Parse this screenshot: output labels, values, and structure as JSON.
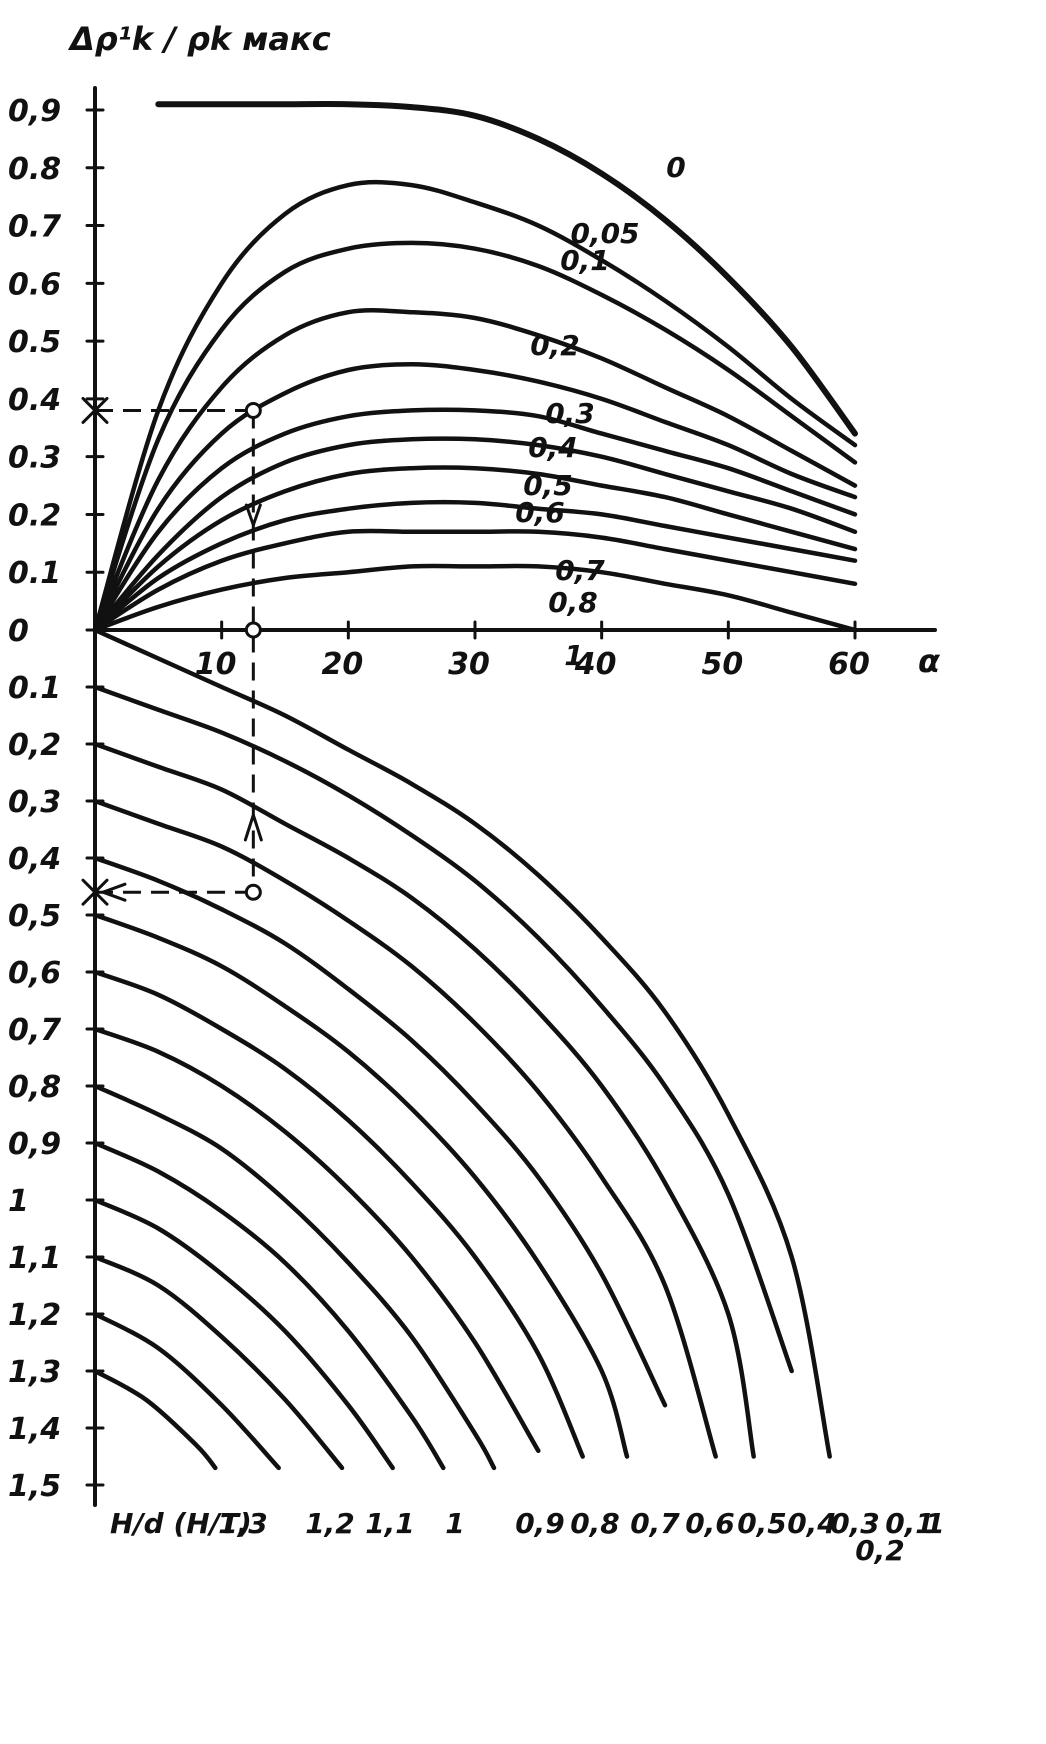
{
  "chart_data": [
    {
      "type": "line",
      "title": "",
      "ylabel": "Δρ¹k / ρk макс",
      "xlabel": "α",
      "xlim": [
        0,
        60
      ],
      "ylim": [
        0,
        0.9
      ],
      "x_ticks": [
        "10",
        "20",
        "30",
        "40",
        "50",
        "60"
      ],
      "y_ticks": [
        "0",
        "0.1",
        "0.2",
        "0.3",
        "0.4",
        "0.5",
        "0.6",
        "0.7",
        "0.8",
        "0,9"
      ],
      "series": [
        {
          "name": "0",
          "x": [
            5,
            10,
            15,
            20,
            25,
            30,
            35,
            40,
            45,
            50,
            55,
            60
          ],
          "y": [
            0.91,
            0.91,
            0.91,
            0.91,
            0.905,
            0.89,
            0.85,
            0.79,
            0.71,
            0.61,
            0.49,
            0.34
          ]
        },
        {
          "name": "0,05",
          "x": [
            0,
            5,
            10,
            15,
            20,
            25,
            30,
            35,
            40,
            45,
            50,
            55,
            60
          ],
          "y": [
            0,
            0.38,
            0.6,
            0.72,
            0.77,
            0.77,
            0.74,
            0.7,
            0.64,
            0.57,
            0.49,
            0.4,
            0.32
          ]
        },
        {
          "name": "0,1",
          "x": [
            0,
            5,
            10,
            15,
            20,
            25,
            30,
            35,
            40,
            45,
            50,
            55,
            60
          ],
          "y": [
            0,
            0.33,
            0.52,
            0.62,
            0.66,
            0.67,
            0.66,
            0.63,
            0.58,
            0.52,
            0.45,
            0.37,
            0.29
          ]
        },
        {
          "name": "0,2",
          "x": [
            0,
            5,
            10,
            15,
            20,
            25,
            30,
            35,
            40,
            45,
            50,
            55,
            60
          ],
          "y": [
            0,
            0.26,
            0.42,
            0.51,
            0.55,
            0.55,
            0.54,
            0.51,
            0.47,
            0.42,
            0.37,
            0.31,
            0.25
          ]
        },
        {
          "name": "0,3",
          "x": [
            0,
            5,
            10,
            15,
            20,
            25,
            30,
            35,
            40,
            45,
            50,
            55,
            60
          ],
          "y": [
            0,
            0.21,
            0.34,
            0.41,
            0.45,
            0.46,
            0.45,
            0.43,
            0.4,
            0.36,
            0.32,
            0.27,
            0.23
          ]
        },
        {
          "name": "0,4",
          "x": [
            0,
            5,
            10,
            15,
            20,
            25,
            30,
            35,
            40,
            45,
            50,
            55,
            60
          ],
          "y": [
            0,
            0.17,
            0.28,
            0.34,
            0.37,
            0.38,
            0.38,
            0.37,
            0.34,
            0.31,
            0.28,
            0.24,
            0.2
          ]
        },
        {
          "name": "0,5",
          "x": [
            0,
            5,
            10,
            15,
            20,
            25,
            30,
            35,
            40,
            45,
            50,
            55,
            60
          ],
          "y": [
            0,
            0.13,
            0.23,
            0.29,
            0.32,
            0.33,
            0.33,
            0.32,
            0.3,
            0.27,
            0.24,
            0.21,
            0.17
          ]
        },
        {
          "name": "0,6",
          "x": [
            0,
            5,
            10,
            15,
            20,
            25,
            30,
            35,
            40,
            45,
            50,
            55,
            60
          ],
          "y": [
            0,
            0.11,
            0.19,
            0.24,
            0.27,
            0.28,
            0.28,
            0.27,
            0.25,
            0.23,
            0.2,
            0.17,
            0.14
          ]
        },
        {
          "name": "0,7",
          "x": [
            0,
            5,
            10,
            15,
            20,
            25,
            30,
            35,
            40,
            45,
            50,
            55,
            60
          ],
          "y": [
            0,
            0.09,
            0.15,
            0.19,
            0.21,
            0.22,
            0.22,
            0.21,
            0.2,
            0.18,
            0.16,
            0.14,
            0.12
          ]
        },
        {
          "name": "0,8",
          "x": [
            0,
            5,
            10,
            15,
            20,
            25,
            30,
            35,
            40,
            45,
            50,
            55,
            60
          ],
          "y": [
            0,
            0.07,
            0.12,
            0.15,
            0.17,
            0.17,
            0.17,
            0.17,
            0.16,
            0.14,
            0.12,
            0.1,
            0.08
          ]
        },
        {
          "name": "1",
          "x": [
            0,
            5,
            10,
            15,
            20,
            25,
            30,
            35,
            40,
            45,
            50,
            55,
            60
          ],
          "y": [
            0,
            0.04,
            0.07,
            0.09,
            0.1,
            0.11,
            0.11,
            0.11,
            0.1,
            0.08,
            0.06,
            0.03,
            0.0
          ]
        }
      ],
      "grid": false,
      "legend": "none"
    },
    {
      "type": "line",
      "title": "",
      "xlabel": "α",
      "ylabel": "",
      "xlim": [
        0,
        60
      ],
      "ylim": [
        1.5,
        0
      ],
      "y_ticks": [
        "0",
        "0.1",
        "0,2",
        "0,3",
        "0,4",
        "0,5",
        "0,6",
        "0,7",
        "0,8",
        "0,9",
        "1",
        "1,1",
        "1,2",
        "1,3",
        "1,4",
        "1,5"
      ],
      "series": [
        {
          "name": "1,3",
          "x": [
            0,
            4,
            8,
            9.5
          ],
          "y": [
            1.3,
            1.35,
            1.43,
            1.47
          ]
        },
        {
          "name": "1,2",
          "x": [
            0,
            5,
            10,
            14.5
          ],
          "y": [
            1.2,
            1.26,
            1.36,
            1.47
          ]
        },
        {
          "name": "1,1",
          "x": [
            0,
            5,
            10,
            15,
            19.5
          ],
          "y": [
            1.1,
            1.15,
            1.24,
            1.35,
            1.47
          ]
        },
        {
          "name": "1",
          "x": [
            0,
            5,
            10,
            15,
            20,
            23.5
          ],
          "y": [
            1.0,
            1.05,
            1.13,
            1.23,
            1.36,
            1.47
          ]
        },
        {
          "name": "0,9",
          "x": [
            0,
            5,
            10,
            15,
            20,
            25,
            27.5
          ],
          "y": [
            0.9,
            0.95,
            1.02,
            1.11,
            1.23,
            1.38,
            1.47
          ]
        },
        {
          "name": "0,8",
          "x": [
            0,
            5,
            10,
            15,
            20,
            25,
            30,
            31.5
          ],
          "y": [
            0.8,
            0.85,
            0.91,
            1.0,
            1.11,
            1.24,
            1.41,
            1.47
          ]
        },
        {
          "name": "0,7",
          "x": [
            0,
            5,
            10,
            15,
            20,
            25,
            30,
            35
          ],
          "y": [
            0.7,
            0.74,
            0.8,
            0.88,
            0.98,
            1.1,
            1.25,
            1.44
          ]
        },
        {
          "name": "0,6",
          "x": [
            0,
            5,
            10,
            15,
            20,
            25,
            30,
            35,
            38.5
          ],
          "y": [
            0.6,
            0.64,
            0.7,
            0.77,
            0.86,
            0.97,
            1.1,
            1.27,
            1.45
          ]
        },
        {
          "name": "0,5",
          "x": [
            0,
            5,
            10,
            15,
            20,
            25,
            30,
            35,
            40,
            42
          ],
          "y": [
            0.5,
            0.54,
            0.59,
            0.66,
            0.74,
            0.84,
            0.96,
            1.11,
            1.3,
            1.45
          ]
        },
        {
          "name": "0,4",
          "x": [
            0,
            5,
            10,
            15,
            20,
            25,
            30,
            35,
            40,
            45
          ],
          "y": [
            0.4,
            0.44,
            0.49,
            0.55,
            0.63,
            0.72,
            0.83,
            0.96,
            1.13,
            1.36
          ]
        },
        {
          "name": "0,3",
          "x": [
            0,
            5,
            10,
            15,
            20,
            25,
            30,
            35,
            40,
            45,
            49
          ],
          "y": [
            0.3,
            0.34,
            0.38,
            0.44,
            0.51,
            0.59,
            0.69,
            0.81,
            0.96,
            1.15,
            1.45
          ]
        },
        {
          "name": "0,2",
          "x": [
            0,
            5,
            10,
            15,
            20,
            25,
            30,
            35,
            40,
            45,
            50,
            52
          ],
          "y": [
            0.2,
            0.24,
            0.28,
            0.34,
            0.4,
            0.47,
            0.56,
            0.67,
            0.8,
            0.97,
            1.2,
            1.45
          ]
        },
        {
          "name": "0,1",
          "x": [
            0,
            5,
            10,
            15,
            20,
            25,
            30,
            35,
            40,
            45,
            50,
            55
          ],
          "y": [
            0.1,
            0.14,
            0.18,
            0.23,
            0.29,
            0.36,
            0.44,
            0.54,
            0.66,
            0.8,
            0.99,
            1.3
          ]
        },
        {
          "name": "1 ",
          "x": [
            0,
            5,
            10,
            15,
            20,
            25,
            30,
            35,
            40,
            45,
            50,
            55,
            58
          ],
          "y": [
            0.0,
            0.05,
            0.1,
            0.15,
            0.21,
            0.27,
            0.34,
            0.43,
            0.54,
            0.67,
            0.85,
            1.1,
            1.45
          ]
        }
      ],
      "hd_label": "H/d (H/T)",
      "bottom_labels": [
        "1,3",
        "1,2",
        "1,1",
        "1",
        "0,9",
        "0,8",
        "0,7",
        "0,6",
        "0,5",
        "0,4",
        "0,3",
        "0,2",
        "0,1",
        "1"
      ],
      "grid": false,
      "legend": "none"
    }
  ],
  "guides": {
    "example_x": 12.5,
    "top_y": 0.38,
    "bottom_y": 0.46
  }
}
